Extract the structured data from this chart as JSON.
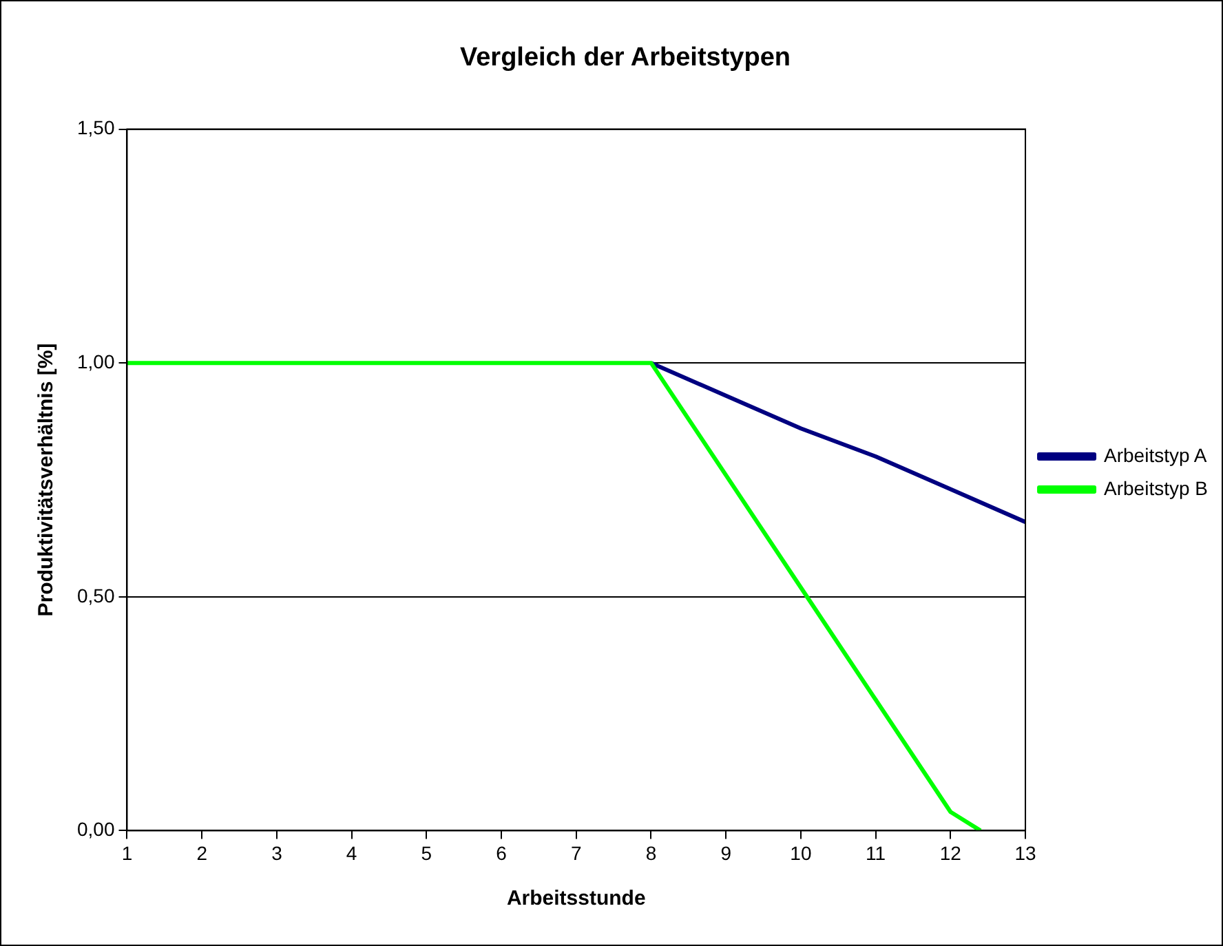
{
  "chart_data": {
    "type": "line",
    "title": "Vergleich der Arbeitstypen",
    "xlabel": "Arbeitsstunde",
    "ylabel": "Produktivitätsverhältnis [%]",
    "xlim": [
      1,
      13
    ],
    "xticks": [
      1,
      2,
      3,
      4,
      5,
      6,
      7,
      8,
      9,
      10,
      11,
      12,
      13
    ],
    "ylim": [
      0,
      1.5
    ],
    "yticks": [
      {
        "value": 0,
        "label": "0,00"
      },
      {
        "value": 0.5,
        "label": "0,50"
      },
      {
        "value": 1,
        "label": "1,00"
      },
      {
        "value": 1.5,
        "label": "1,50"
      }
    ],
    "grid": "y",
    "legend": "right",
    "series": [
      {
        "name": "Arbeitstyp A",
        "color": "#000080",
        "x": [
          8,
          9,
          10,
          11,
          12,
          13
        ],
        "values": [
          1,
          0.93,
          0.86,
          0.8,
          0.73,
          0.66
        ]
      },
      {
        "name": "Arbeitstyp B",
        "color": "#00ff00",
        "x": [
          1,
          2,
          3,
          4,
          5,
          6,
          7,
          8,
          9,
          10,
          11,
          12,
          12.4
        ],
        "values": [
          1,
          1,
          1,
          1,
          1,
          1,
          1,
          1,
          0.76,
          0.52,
          0.28,
          0.04,
          0
        ]
      }
    ]
  }
}
